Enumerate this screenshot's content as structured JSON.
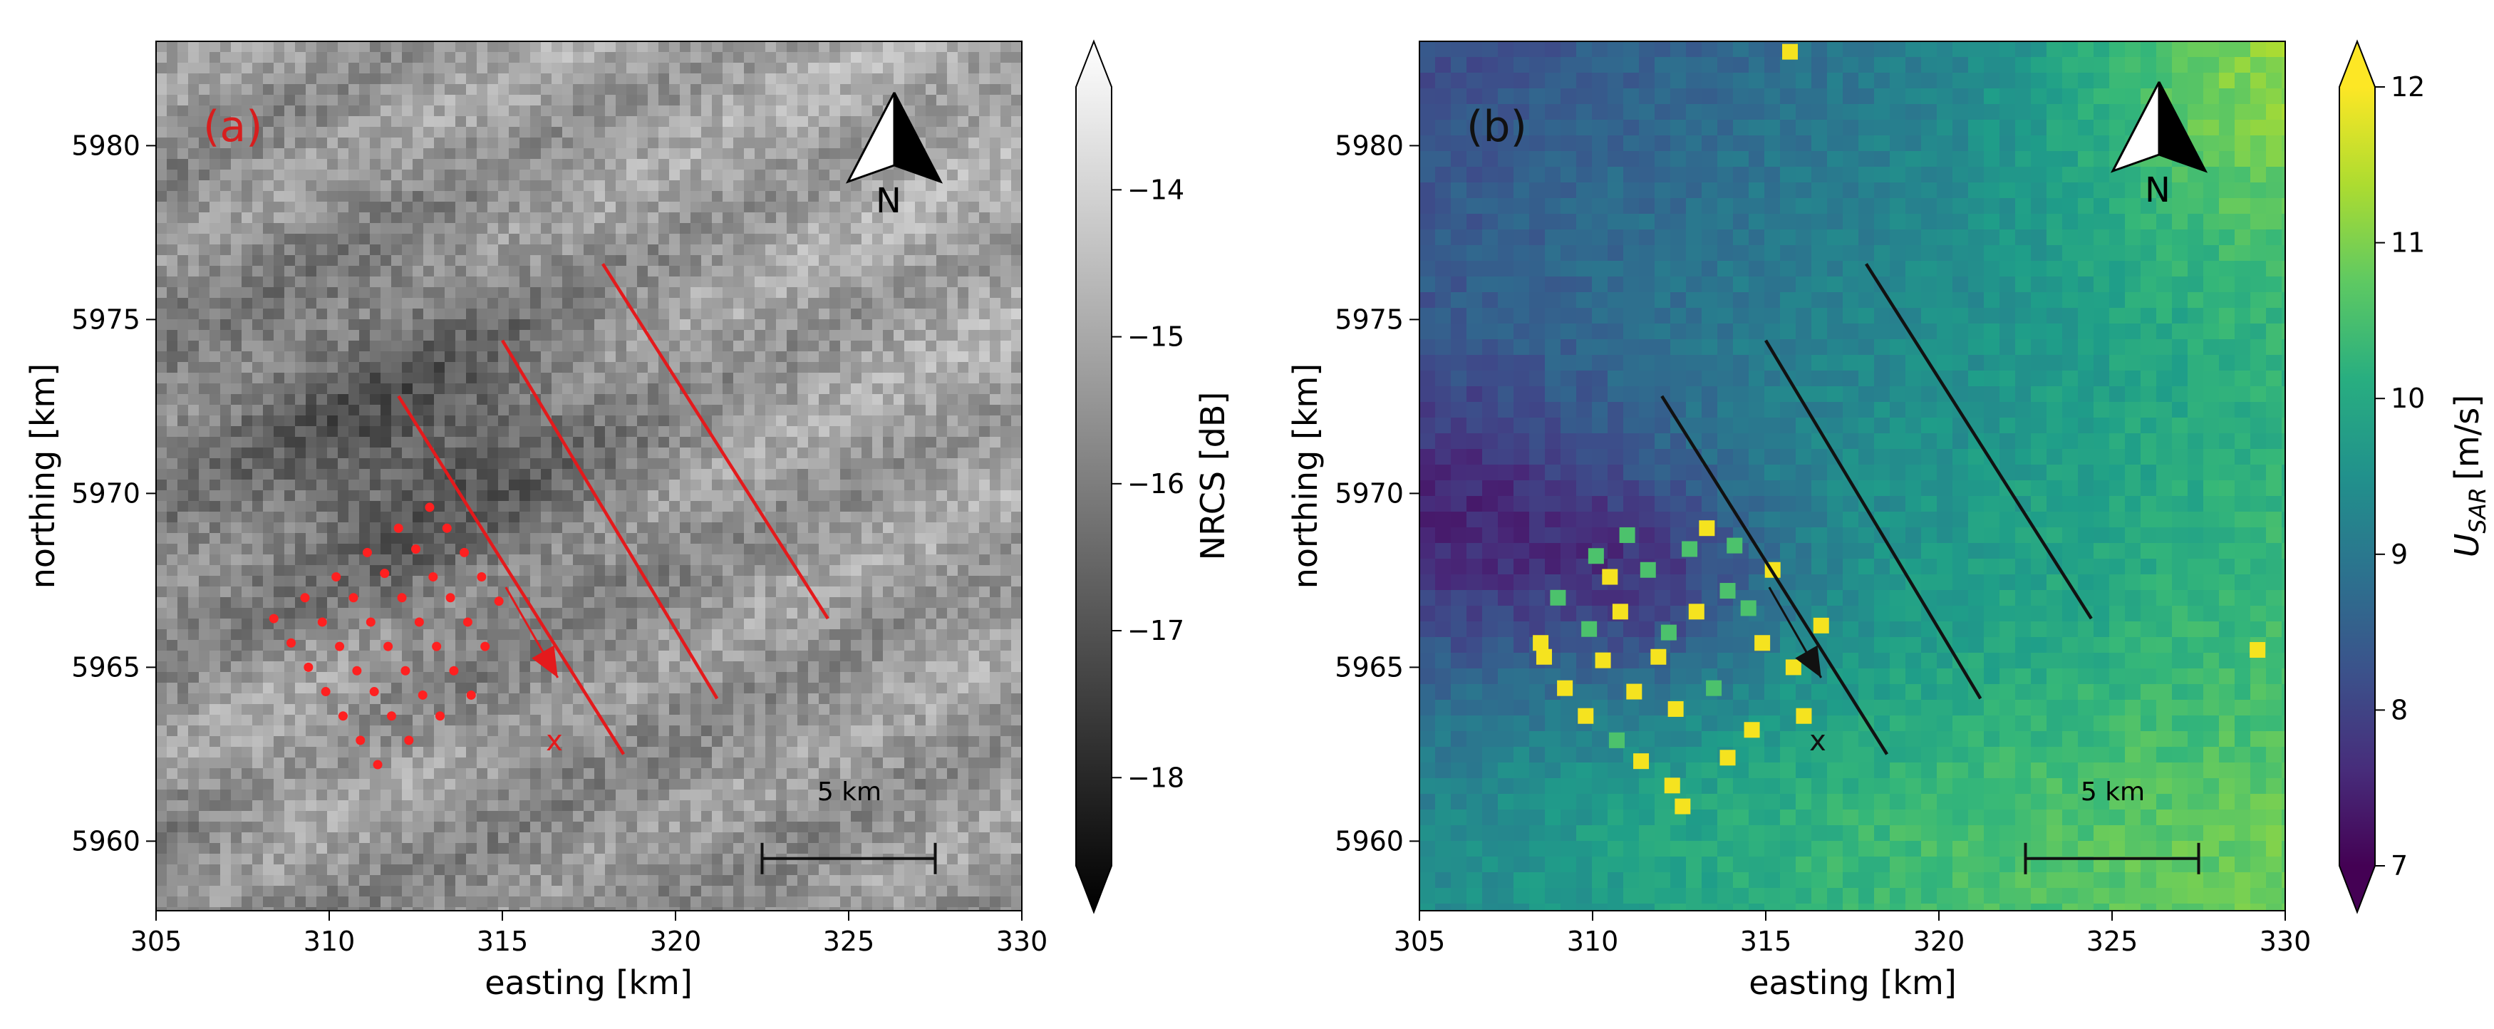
{
  "chart_data": [
    {
      "type": "heatmap",
      "panel_label": "(a)",
      "xlabel": "easting [km]",
      "ylabel": "northing [km]",
      "xlim": [
        305,
        330
      ],
      "ylim": [
        5958,
        5983
      ],
      "xticks": [
        305,
        310,
        315,
        320,
        325,
        330
      ],
      "yticks": [
        5960,
        5965,
        5970,
        5975,
        5980
      ],
      "colorbar": {
        "label": "NRCS [dB]",
        "range": [
          -18.6,
          -13.3
        ],
        "ticks": [
          -14,
          -15,
          -16,
          -17,
          -18
        ],
        "ticks_text": [
          "−14",
          "−15",
          "−16",
          "−17",
          "−18"
        ],
        "colormap": "gray",
        "extend": "both"
      },
      "north_arrow_label": "N",
      "scale_bar": {
        "label": "5 km",
        "from_km": 322.5,
        "to_km": 327.5,
        "northing": 5959.5
      },
      "transect_lines": [
        {
          "from": [
            312.0,
            5972.8
          ],
          "to": [
            318.5,
            5962.5
          ]
        },
        {
          "from": [
            315.0,
            5974.4
          ],
          "to": [
            321.2,
            5964.1
          ]
        },
        {
          "from": [
            317.9,
            5976.6
          ],
          "to": [
            324.4,
            5966.4
          ]
        }
      ],
      "wind_arrow": {
        "from": [
          315.1,
          5967.3
        ],
        "to": [
          316.6,
          5964.7
        ]
      },
      "marker": {
        "label": "x",
        "at": [
          316.5,
          5962.9
        ]
      },
      "turbines": [
        [
          308.4,
          5966.4
        ],
        [
          309.3,
          5967.0
        ],
        [
          310.2,
          5967.6
        ],
        [
          311.1,
          5968.3
        ],
        [
          312.0,
          5969.0
        ],
        [
          312.9,
          5969.6
        ],
        [
          308.9,
          5965.7
        ],
        [
          309.8,
          5966.3
        ],
        [
          310.7,
          5967.0
        ],
        [
          311.6,
          5967.7
        ],
        [
          312.5,
          5968.4
        ],
        [
          313.4,
          5969.0
        ],
        [
          309.4,
          5965.0
        ],
        [
          310.3,
          5965.6
        ],
        [
          311.2,
          5966.3
        ],
        [
          312.1,
          5967.0
        ],
        [
          313.0,
          5967.6
        ],
        [
          313.9,
          5968.3
        ],
        [
          309.9,
          5964.3
        ],
        [
          310.8,
          5964.9
        ],
        [
          311.7,
          5965.6
        ],
        [
          312.6,
          5966.3
        ],
        [
          313.5,
          5967.0
        ],
        [
          314.4,
          5967.6
        ],
        [
          310.4,
          5963.6
        ],
        [
          311.3,
          5964.3
        ],
        [
          312.2,
          5964.9
        ],
        [
          313.1,
          5965.6
        ],
        [
          314.0,
          5966.3
        ],
        [
          314.9,
          5966.9
        ],
        [
          310.9,
          5962.9
        ],
        [
          311.8,
          5963.6
        ],
        [
          312.7,
          5964.2
        ],
        [
          313.6,
          5964.9
        ],
        [
          314.5,
          5965.6
        ],
        [
          311.4,
          5962.2
        ],
        [
          312.3,
          5962.9
        ],
        [
          313.2,
          5963.6
        ],
        [
          314.1,
          5964.2
        ]
      ]
    },
    {
      "type": "heatmap",
      "panel_label": "(b)",
      "xlabel": "easting [km]",
      "ylabel": "northing [km]",
      "xlim": [
        305,
        330
      ],
      "ylim": [
        5958,
        5983
      ],
      "xticks": [
        305,
        310,
        315,
        320,
        325,
        330
      ],
      "yticks": [
        5960,
        5965,
        5970,
        5975,
        5980
      ],
      "colorbar": {
        "label": "U",
        "label_sub": "SAR",
        "label_units": "[m/s]",
        "range": [
          7,
          12
        ],
        "ticks": [
          7,
          8,
          9,
          10,
          11,
          12
        ],
        "colormap": "viridis",
        "extend": "both"
      },
      "north_arrow_label": "N",
      "scale_bar": {
        "label": "5 km",
        "from_km": 322.5,
        "to_km": 327.5,
        "northing": 5959.5
      },
      "transect_lines": [
        {
          "from": [
            312.0,
            5972.8
          ],
          "to": [
            318.5,
            5962.5
          ]
        },
        {
          "from": [
            315.0,
            5974.4
          ],
          "to": [
            321.2,
            5964.1
          ]
        },
        {
          "from": [
            317.9,
            5976.6
          ],
          "to": [
            324.4,
            5966.4
          ]
        }
      ],
      "wind_arrow": {
        "from": [
          315.1,
          5967.3
        ],
        "to": [
          316.6,
          5964.7
        ]
      },
      "marker": {
        "label": "x",
        "at": [
          316.5,
          5962.9
        ]
      },
      "bright_cells": [
        [
          308.5,
          5965.7
        ],
        [
          308.6,
          5965.3
        ],
        [
          309.2,
          5964.4
        ],
        [
          309.8,
          5963.6
        ],
        [
          310.3,
          5965.2
        ],
        [
          310.8,
          5966.6
        ],
        [
          311.2,
          5964.3
        ],
        [
          311.4,
          5962.3
        ],
        [
          311.9,
          5965.3
        ],
        [
          312.3,
          5961.6
        ],
        [
          312.4,
          5963.8
        ],
        [
          313.0,
          5966.6
        ],
        [
          313.3,
          5969.0
        ],
        [
          313.9,
          5962.4
        ],
        [
          314.6,
          5963.2
        ],
        [
          314.9,
          5965.7
        ],
        [
          315.2,
          5967.8
        ],
        [
          315.8,
          5965.0
        ],
        [
          316.1,
          5963.6
        ],
        [
          316.6,
          5966.2
        ],
        [
          315.7,
          5982.7
        ],
        [
          329.2,
          5965.5
        ],
        [
          312.6,
          5961.0
        ],
        [
          310.5,
          5967.6
        ]
      ],
      "medium_cells": [
        [
          309.0,
          5967.0
        ],
        [
          310.1,
          5968.2
        ],
        [
          311.6,
          5967.8
        ],
        [
          312.8,
          5968.4
        ],
        [
          313.9,
          5967.2
        ],
        [
          314.1,
          5968.5
        ],
        [
          311.0,
          5968.8
        ],
        [
          312.2,
          5966.0
        ],
        [
          313.5,
          5964.4
        ],
        [
          310.7,
          5962.9
        ],
        [
          309.9,
          5966.1
        ],
        [
          314.5,
          5966.7
        ]
      ]
    }
  ]
}
